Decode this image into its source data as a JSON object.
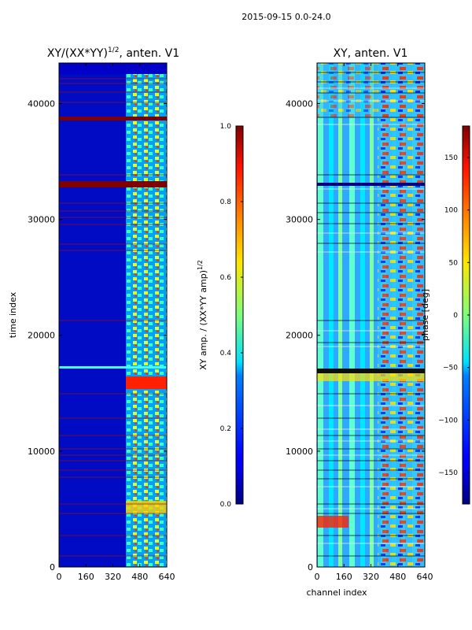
{
  "suptitle": "2015-09-15 0.0-24.0",
  "chart_data": [
    {
      "type": "heatmap",
      "title": "XY/(XX*YY)$^{1/2}$, anten. V1",
      "title_main": "XY/(XX*YY)",
      "title_exp": "1/2",
      "title_tail": ", anten. V1",
      "xlabel": "",
      "ylabel": "time index",
      "xlim": [
        0,
        640
      ],
      "ylim": [
        0,
        43500
      ],
      "xticks": [
        0,
        160,
        320,
        480,
        640
      ],
      "yticks": [
        0,
        10000,
        20000,
        30000,
        40000
      ],
      "colorbar": {
        "label": "XY amp. / (XX*YY amp)$^{1/2}$",
        "label_main": "XY amp. / (XX*YY amp)",
        "label_exp": "1/2",
        "range": [
          0.0,
          1.0
        ],
        "ticks": [
          0.0,
          0.2,
          0.4,
          0.6,
          0.8,
          1.0
        ],
        "tick_labels": [
          "0.0",
          "0.2",
          "0.4",
          "0.6",
          "0.8",
          "1.0"
        ],
        "colormap": "jet"
      }
    },
    {
      "type": "heatmap",
      "title": "XY, anten. V1",
      "xlabel": "channel index",
      "ylabel": "",
      "xlim": [
        0,
        640
      ],
      "ylim": [
        0,
        43500
      ],
      "xticks": [
        0,
        160,
        320,
        480,
        640
      ],
      "yticks": [
        0,
        10000,
        20000,
        30000,
        40000
      ],
      "colorbar": {
        "label": "phase [deg]",
        "range": [
          -180,
          180
        ],
        "ticks": [
          150,
          100,
          50,
          0,
          -50,
          -100,
          -150
        ],
        "tick_labels": [
          "150",
          "100",
          "50",
          "0",
          "−50",
          "−100",
          "−150"
        ],
        "colormap": "jet"
      }
    }
  ]
}
